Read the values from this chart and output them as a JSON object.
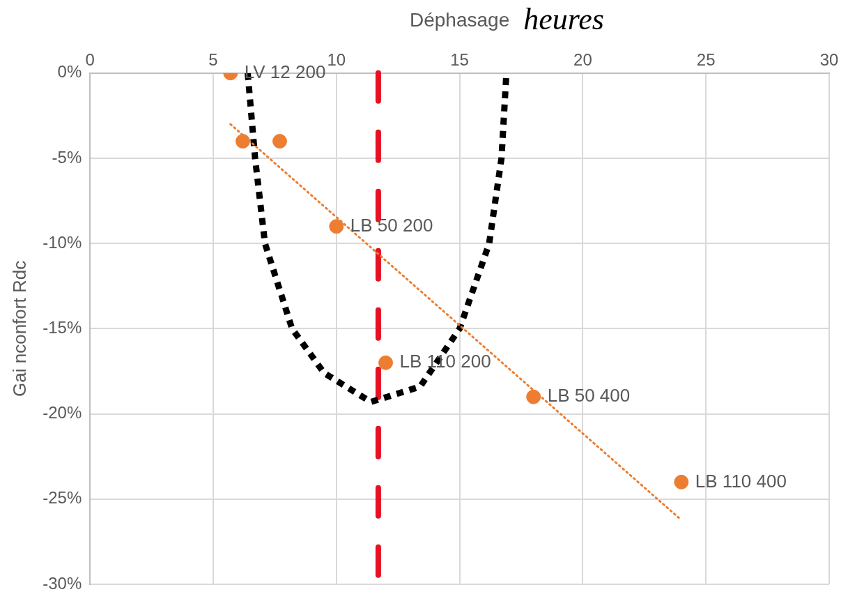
{
  "chart_data": {
    "type": "scatter",
    "xlabel": "Déphasage",
    "ylabel": "Gai nconfort Rdc",
    "annotations": [
      "heures"
    ],
    "xlim": [
      0,
      30
    ],
    "xticks": [
      0,
      5,
      10,
      15,
      20,
      25,
      30
    ],
    "ylim": [
      -30,
      0
    ],
    "yticks": [
      {
        "value": -30,
        "label": "-30%"
      },
      {
        "value": -25,
        "label": "-25%"
      },
      {
        "value": -20,
        "label": "-20%"
      },
      {
        "value": -15,
        "label": "-15%"
      },
      {
        "value": -10,
        "label": "-10%"
      },
      {
        "value": -5,
        "label": "-5%"
      },
      {
        "value": 0,
        "label": "0%"
      }
    ],
    "grid": true,
    "marker": "circle",
    "series": [
      {
        "type": "scatter",
        "color": "#ed7d31",
        "x": [
          5.7,
          6.2,
          7.7,
          10,
          12,
          18,
          24
        ],
        "values": [
          0,
          -4,
          -4,
          -9,
          -17,
          -19,
          -24
        ],
        "value_labels": [
          "LV 12 200",
          null,
          null,
          "LB 50 200",
          "LB 110 200",
          "LB 50 400",
          "LB 110 400"
        ]
      },
      {
        "type": "line",
        "color": "#ed7d31",
        "line_style": "dotted",
        "marker": "none",
        "x": [
          5.7,
          23.9
        ],
        "values": [
          -3,
          -26.1
        ]
      },
      {
        "type": "line",
        "color": "#000000",
        "line_style": "dashed",
        "marker": "none",
        "x": [
          6.4,
          6.7,
          7.1,
          8.2,
          9.5,
          11.4,
          13.4,
          15,
          16.2,
          16.7,
          16.9
        ],
        "values": [
          0,
          -5,
          -10,
          -15,
          -17.6,
          -19.3,
          -18.4,
          -15,
          -10,
          -5,
          0
        ]
      }
    ],
    "ref_lines": [
      {
        "axis": "x",
        "value": 11.7,
        "color": "#e81123",
        "line_style": "dashed"
      }
    ]
  }
}
